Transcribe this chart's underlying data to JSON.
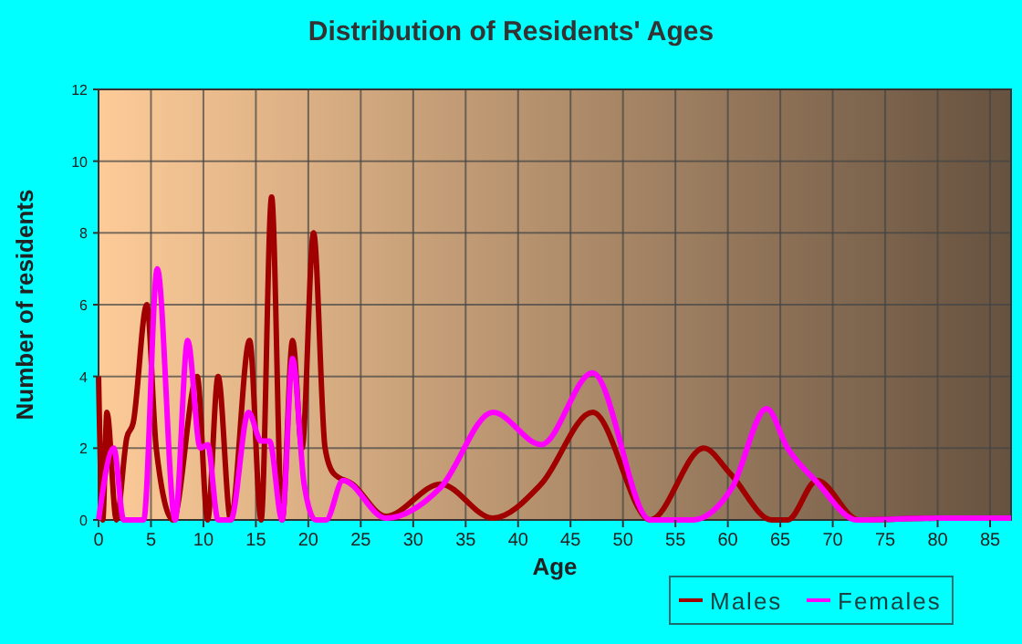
{
  "chart_data": {
    "type": "line",
    "title": "Distribution of Residents' Ages",
    "xlabel": "Age",
    "ylabel": "Number of residents",
    "xlim": [
      0,
      87
    ],
    "ylim": [
      0,
      12
    ],
    "xticks": [
      0,
      5,
      10,
      15,
      20,
      25,
      30,
      35,
      40,
      45,
      50,
      55,
      60,
      65,
      70,
      75,
      80,
      85
    ],
    "yticks": [
      0,
      2,
      4,
      6,
      8,
      10,
      12
    ],
    "grid": true,
    "legend": "bottom right",
    "marker": "none",
    "line_style": "solid",
    "series": [
      {
        "name": "Males",
        "color": "#a00000",
        "x": [
          0,
          0.4,
          0.8,
          1.7,
          2.7,
          3.3,
          4.6,
          5.5,
          7.1,
          9.4,
          10.4,
          11.4,
          12.6,
          14.4,
          15.5,
          16.5,
          17.5,
          18.5,
          19.4,
          20.5,
          21.6,
          22.4,
          24.2,
          27.4,
          32.6,
          37.6,
          42.2,
          47.1,
          52.6,
          57.7,
          60.2,
          64.2,
          65.7,
          68.5,
          72.5,
          80,
          87
        ],
        "values": [
          4,
          0,
          3,
          0,
          2.3,
          2.7,
          6,
          2,
          0,
          4,
          0,
          4,
          0,
          5,
          0,
          9,
          0,
          5,
          2,
          8,
          2,
          1.3,
          1,
          0.1,
          1,
          0.05,
          1,
          3,
          0,
          2,
          1.3,
          0,
          0,
          1.1,
          0,
          0.05,
          0.05
        ]
      },
      {
        "name": "Females",
        "color": "#ff00ff",
        "x": [
          0,
          1.45,
          2.4,
          4.3,
          5.6,
          7.3,
          8.5,
          9.7,
          10.4,
          11.4,
          12.6,
          14.3,
          15.5,
          16.3,
          17.5,
          18.5,
          19.6,
          20.7,
          21.7,
          23.3,
          27.4,
          32.6,
          37.6,
          42.2,
          47.1,
          52.6,
          56.6,
          60.4,
          63.7,
          65.7,
          68.5,
          72.3,
          80,
          87
        ],
        "values": [
          0,
          2,
          0,
          0,
          7,
          0,
          5,
          2,
          2.1,
          0,
          0,
          3,
          2.2,
          2.2,
          0,
          4.5,
          1,
          0,
          0,
          1.1,
          0.05,
          0.9,
          3,
          2.1,
          4.1,
          0,
          0,
          0.9,
          3.1,
          2,
          1.05,
          0,
          0.05,
          0.05
        ]
      }
    ]
  }
}
